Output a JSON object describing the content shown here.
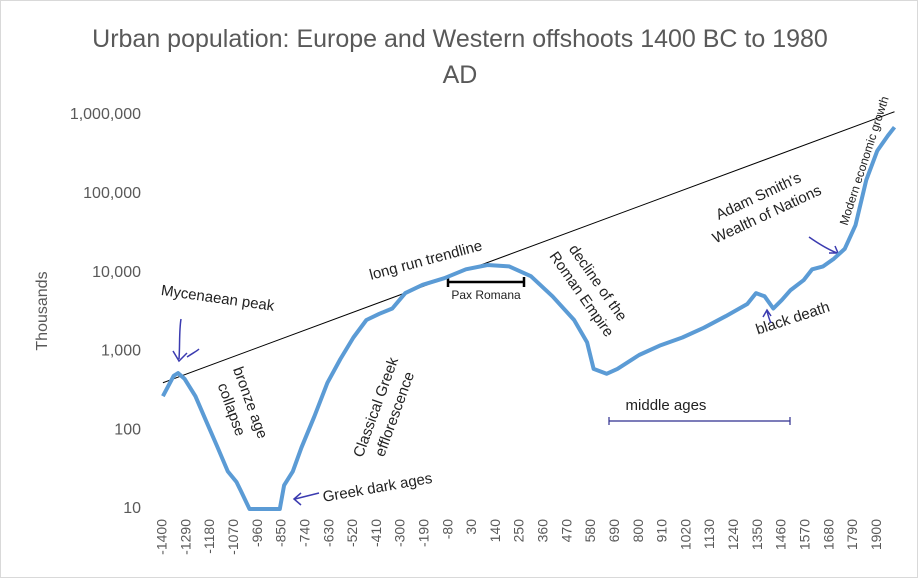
{
  "chart_data": {
    "type": "line",
    "title": "Urban population: Europe and Western offshoots 1400 BC to 1980 AD",
    "ylabel": "Thousands",
    "log_scale": true,
    "grid": false,
    "color": "#5b9bd5",
    "x": [
      -1400,
      -1350,
      -1330,
      -1300,
      -1250,
      -1200,
      -1150,
      -1100,
      -1060,
      -1040,
      -1000,
      -860,
      -840,
      -800,
      -760,
      -700,
      -640,
      -580,
      -520,
      -460,
      -400,
      -340,
      -280,
      -200,
      -100,
      0,
      100,
      200,
      300,
      400,
      500,
      560,
      590,
      650,
      700,
      800,
      900,
      1000,
      1100,
      1200,
      1300,
      1340,
      1380,
      1420,
      1460,
      1500,
      1560,
      1600,
      1650,
      1700,
      1750,
      1800,
      1850,
      1900,
      1950,
      1980
    ],
    "values": [
      270,
      490,
      530,
      450,
      270,
      130,
      63,
      30,
      22,
      17,
      10,
      10,
      20,
      30,
      60,
      150,
      400,
      800,
      1500,
      2500,
      3000,
      3500,
      5500,
      7000,
      8500,
      11000,
      12500,
      12000,
      9000,
      5000,
      2500,
      1300,
      600,
      520,
      600,
      900,
      1200,
      1500,
      2000,
      2800,
      4000,
      5500,
      5000,
      3500,
      4500,
      6000,
      8000,
      11000,
      12000,
      15000,
      20000,
      40000,
      150000,
      350000,
      550000,
      700000
    ],
    "trendline": {
      "label": "long run trendline",
      "x": [
        -1400,
        1980
      ],
      "values": [
        400,
        1100000
      ]
    },
    "xlim": [
      -1455,
      1987
    ],
    "xticks": [
      -1400,
      -1290,
      -1180,
      -1070,
      -960,
      -850,
      -740,
      -630,
      -520,
      -410,
      -300,
      -190,
      -80,
      30,
      140,
      250,
      360,
      470,
      580,
      690,
      800,
      910,
      1020,
      1130,
      1240,
      1350,
      1460,
      1570,
      1680,
      1790,
      1900
    ],
    "ylim": [
      10,
      1000000
    ],
    "yticks": [
      10,
      100,
      {
        "value": 1000,
        "label": "1,000"
      },
      {
        "value": 10000,
        "label": "10,000"
      },
      {
        "value": 100000,
        "label": "100,000"
      },
      {
        "value": 1000000,
        "label": "1,000,000"
      }
    ],
    "annotations": [
      [
        "Mycenaean peak"
      ],
      [
        "bronze age",
        "collapse"
      ],
      [
        "Classical Greek",
        "efflorescence"
      ],
      [
        "Greek dark ages"
      ],
      [
        "Pax Romana"
      ],
      [
        "decline of the",
        "Roman Empire"
      ],
      [
        "middle ages"
      ],
      [
        "black death"
      ],
      [
        "Adam Smith's",
        "Wealth of Nations"
      ],
      [
        "Modern economic growth"
      ]
    ]
  }
}
